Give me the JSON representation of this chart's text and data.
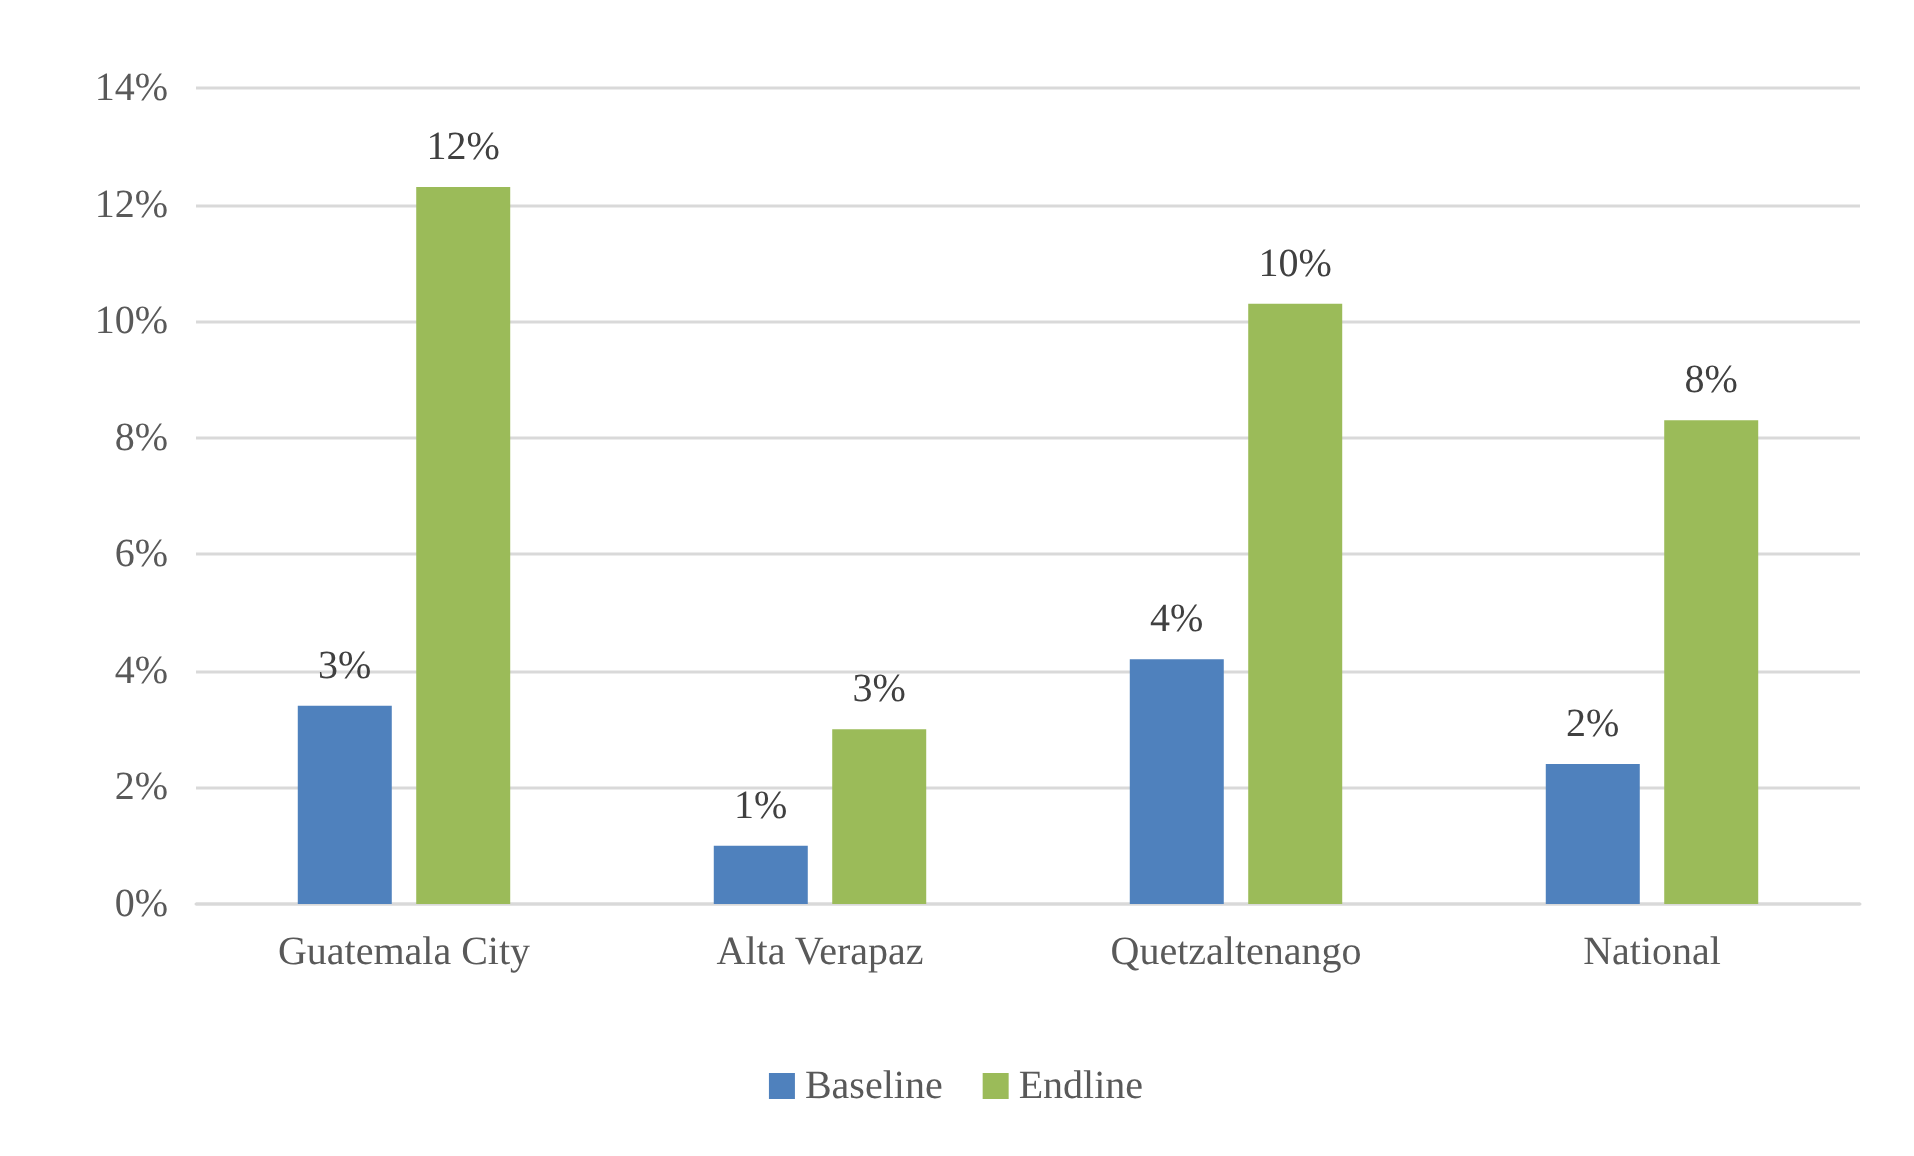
{
  "chart_data": {
    "type": "bar",
    "categories": [
      "Guatemala City",
      "Alta Verapaz",
      "Quetzaltenango",
      "National"
    ],
    "series": [
      {
        "name": "Baseline",
        "color": "#4f81bd",
        "values": [
          3.4,
          1.0,
          4.2,
          2.4
        ],
        "value_labels": [
          "3%",
          "1%",
          "4%",
          "2%"
        ]
      },
      {
        "name": "Endline",
        "color": "#9bbb59",
        "values": [
          12.3,
          3.0,
          10.3,
          8.3
        ],
        "value_labels": [
          "12%",
          "3%",
          "10%",
          "8%"
        ]
      }
    ],
    "ylim": [
      0,
      14
    ],
    "yticks": [
      {
        "value": 0,
        "label": "0%"
      },
      {
        "value": 2,
        "label": "2%"
      },
      {
        "value": 4,
        "label": "4%"
      },
      {
        "value": 6,
        "label": "6%"
      },
      {
        "value": 8,
        "label": "8%"
      },
      {
        "value": 10,
        "label": "10%"
      },
      {
        "value": 12,
        "label": "12%"
      },
      {
        "value": 14,
        "label": "14%"
      }
    ],
    "grid": "y",
    "legend": "bottom"
  }
}
